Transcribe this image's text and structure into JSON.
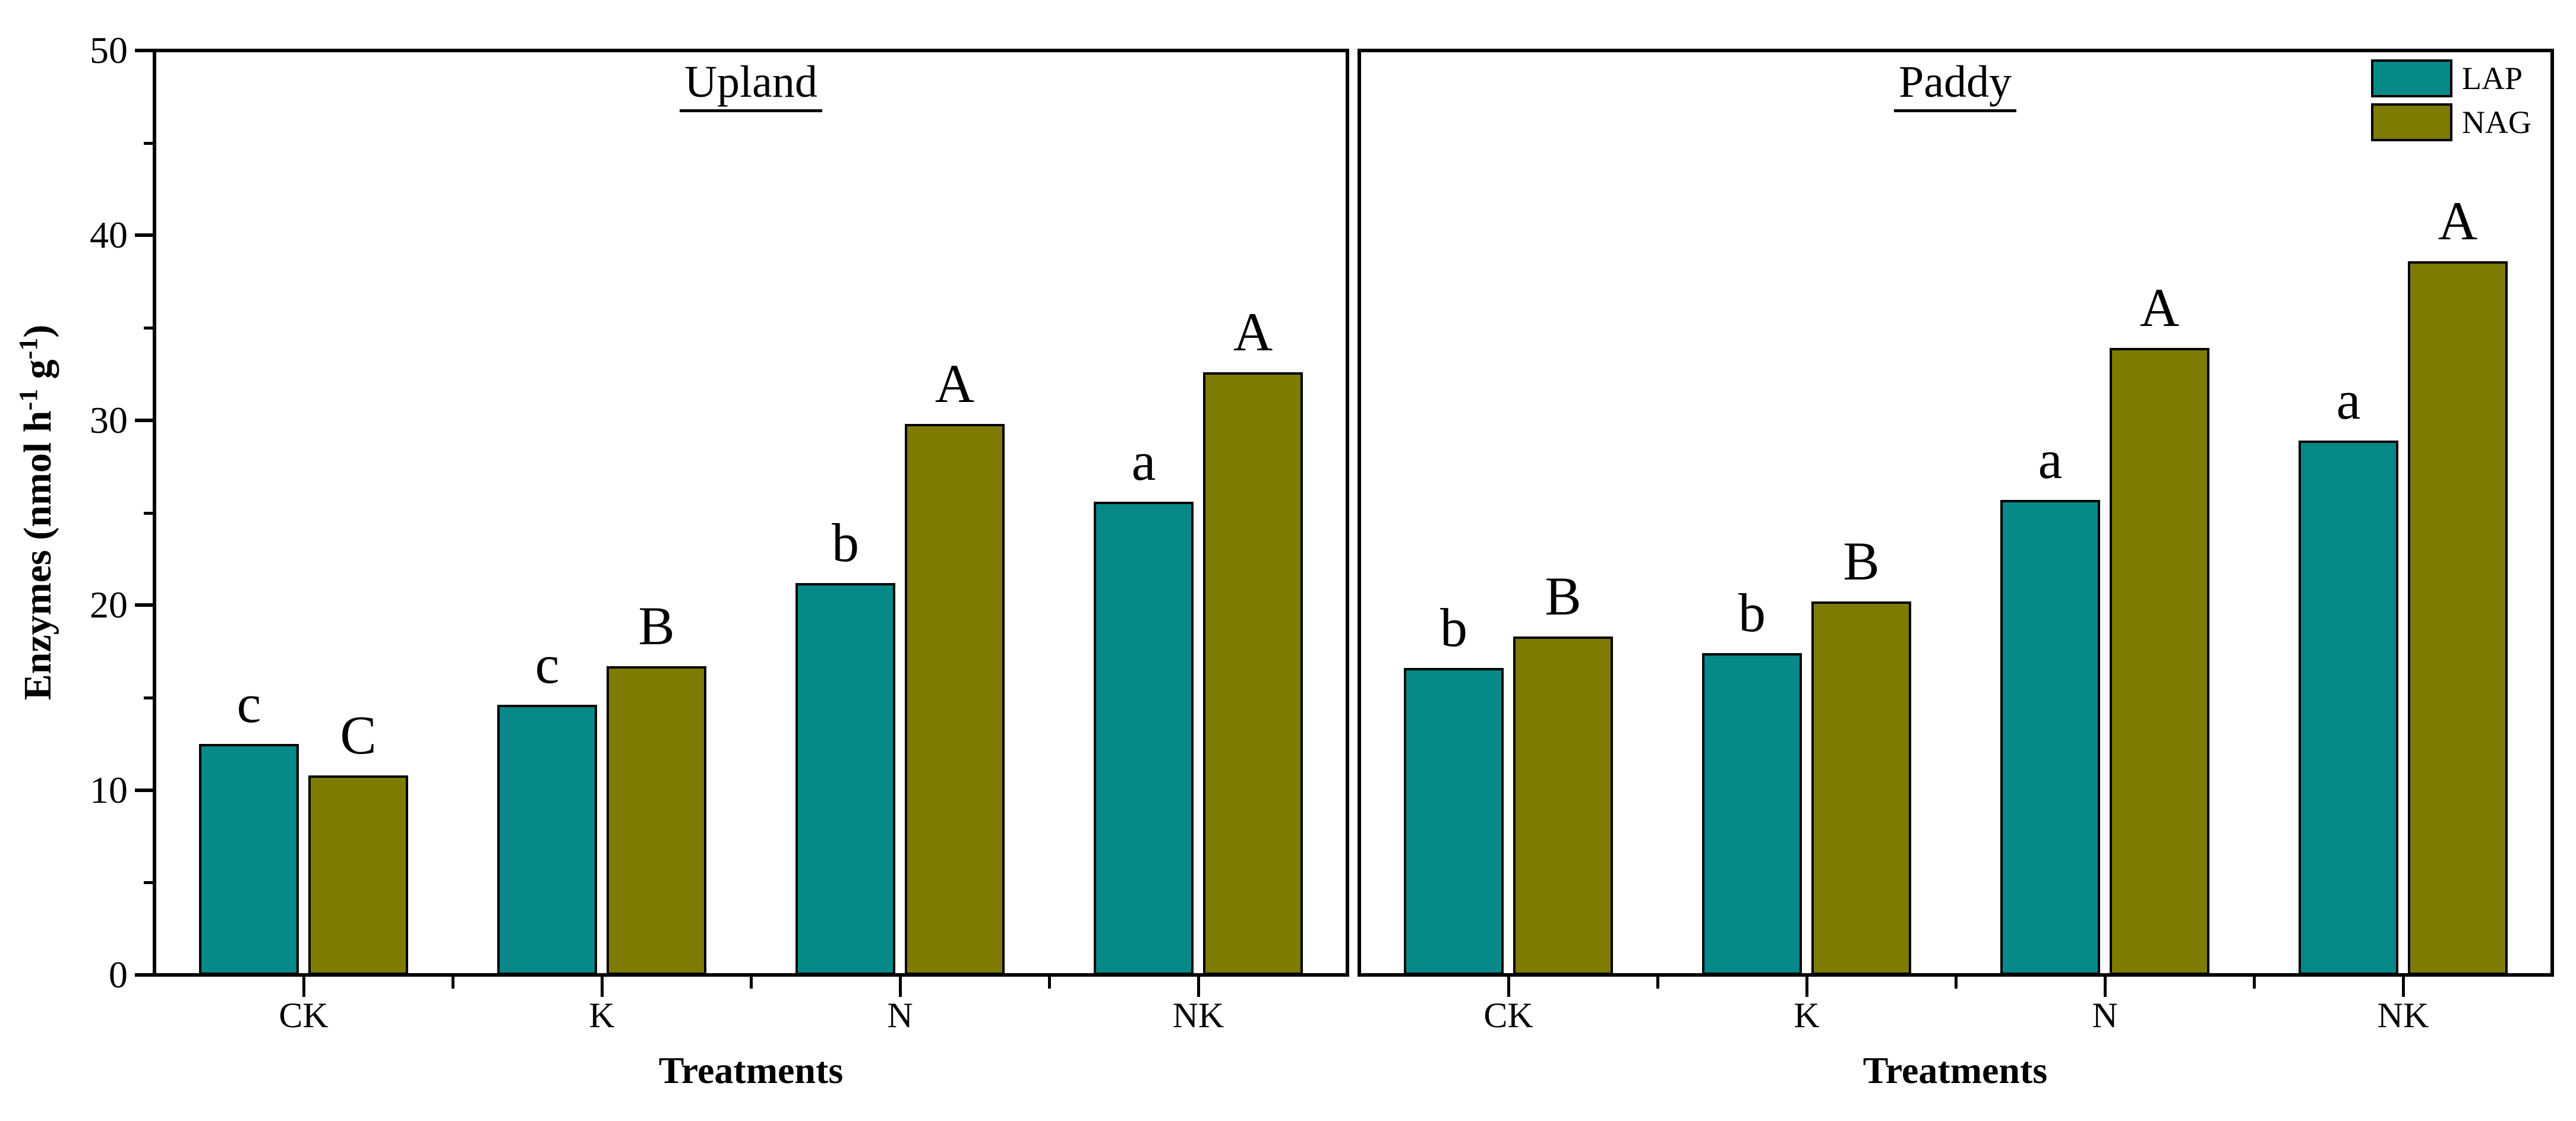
{
  "figure": {
    "background": "#ffffff",
    "axis_color": "#000000",
    "bar_colors": {
      "LAP": "#078889",
      "NAG": "#7e7b02"
    }
  },
  "y_axis": {
    "label_parts": [
      "Enzymes (nmol h",
      "-1",
      " g",
      "-1",
      ")"
    ],
    "ticks": [
      0,
      10,
      20,
      30,
      40,
      50
    ],
    "minor_ticks": [
      5,
      15,
      25,
      35,
      45
    ],
    "range": [
      0,
      50
    ]
  },
  "x_axis": {
    "label": "Treatments"
  },
  "legend": {
    "position": "top-right",
    "items": [
      {
        "label": "LAP",
        "color": "#078889"
      },
      {
        "label": "NAG",
        "color": "#7e7b02"
      }
    ]
  },
  "chart_data": [
    {
      "type": "bar",
      "title": "Upland",
      "categories": [
        "CK",
        "K",
        "N",
        "NK"
      ],
      "series": [
        {
          "name": "LAP",
          "values": [
            12.5,
            14.6,
            21.2,
            25.6
          ],
          "sig_letters": [
            "c",
            "c",
            "b",
            "a"
          ]
        },
        {
          "name": "NAG",
          "values": [
            10.8,
            16.7,
            29.8,
            32.6
          ],
          "sig_letters": [
            "C",
            "B",
            "A",
            "A"
          ]
        }
      ],
      "xlabel": "Treatments",
      "ylabel": "Enzymes (nmol h-1 g-1)",
      "ylim": [
        0,
        50
      ],
      "grid": false,
      "legend_position": "none"
    },
    {
      "type": "bar",
      "title": "Paddy",
      "categories": [
        "CK",
        "K",
        "N",
        "NK"
      ],
      "series": [
        {
          "name": "LAP",
          "values": [
            16.6,
            17.4,
            25.7,
            28.9
          ],
          "sig_letters": [
            "b",
            "b",
            "a",
            "a"
          ]
        },
        {
          "name": "NAG",
          "values": [
            18.3,
            20.2,
            33.9,
            38.6
          ],
          "sig_letters": [
            "B",
            "B",
            "A",
            "A"
          ]
        }
      ],
      "xlabel": "Treatments",
      "ylabel": "Enzymes (nmol h-1 g-1)",
      "ylim": [
        0,
        50
      ],
      "grid": false,
      "legend_position": "top-right-inside"
    }
  ]
}
